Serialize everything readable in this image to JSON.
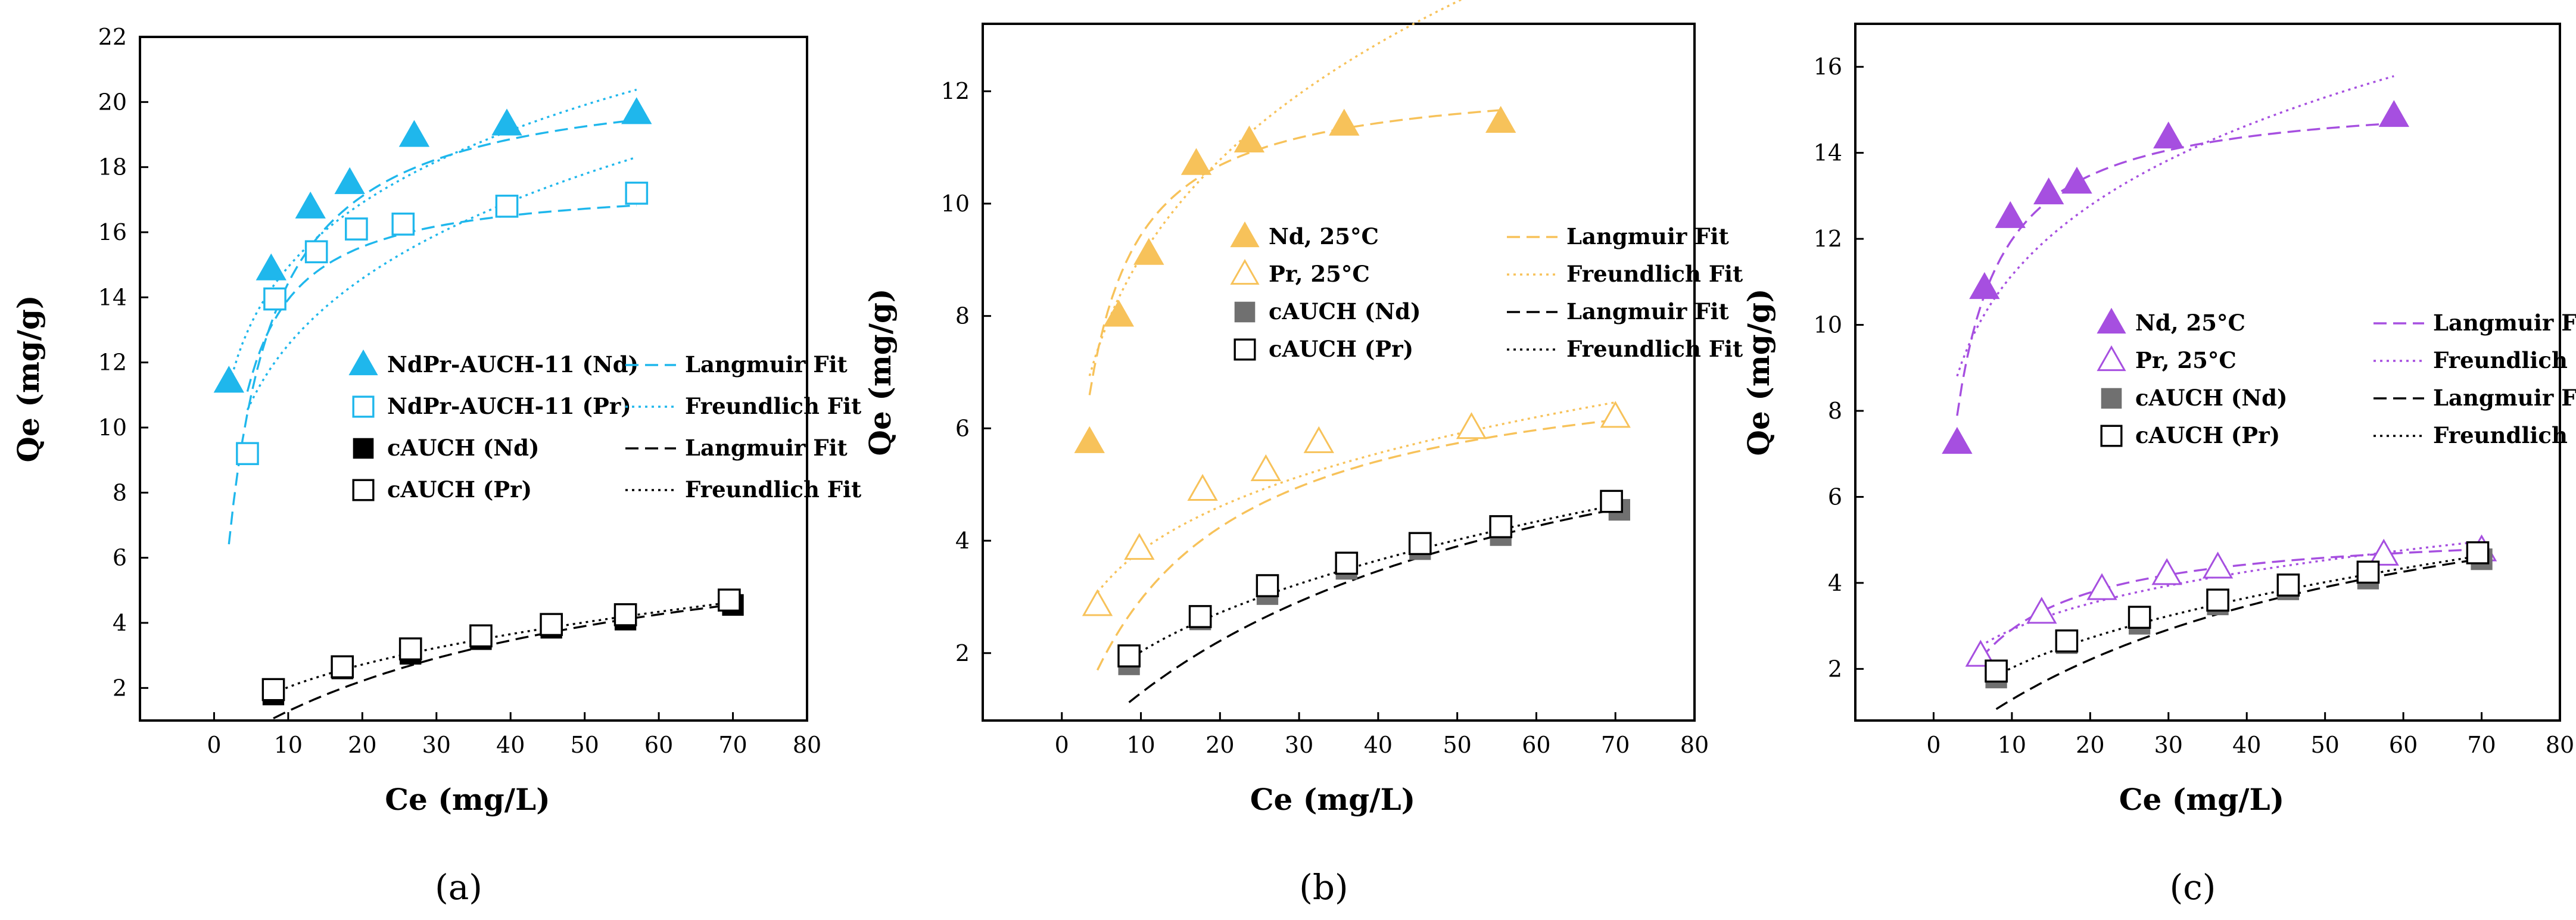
{
  "colors": {
    "a": "#1fb7ec",
    "b": "#f7c25a",
    "c": "#a64fe0",
    "black": "#000000",
    "grey": "#707070"
  },
  "chart_data": [
    {
      "type": "scatter",
      "panel": "a",
      "sublabel": "(a)",
      "xlabel": "Ce (mg/L)",
      "ylabel": "Qe (mg/g)",
      "xlim": [
        -10,
        80
      ],
      "ylim": [
        1,
        22
      ],
      "xticks": [
        0,
        10,
        20,
        30,
        40,
        50,
        60,
        70,
        80
      ],
      "yticks": [
        2,
        4,
        6,
        8,
        10,
        12,
        14,
        16,
        18,
        20,
        22
      ],
      "legend_position": "center-right",
      "points": [
        {
          "name": "NdPr-AUCH-11 (Nd)",
          "marker": "tri-filled",
          "color_key": "a",
          "x": [
            2,
            7.7,
            13,
            18.3,
            27,
            39.5,
            57
          ],
          "y": [
            11.4,
            14.85,
            16.75,
            17.5,
            18.95,
            19.3,
            19.65
          ]
        },
        {
          "name": "NdPr-AUCH-11 (Pr)",
          "marker": "sq-open",
          "color_key": "a",
          "x": [
            4.5,
            8.2,
            13.8,
            19.2,
            25.5,
            39.5,
            57
          ],
          "y": [
            9.2,
            13.95,
            15.4,
            16.1,
            16.25,
            16.8,
            17.2
          ]
        },
        {
          "name": "cAUCH (Nd)",
          "marker": "sq-filled",
          "color_key": "black",
          "x": [
            8,
            17.3,
            26.5,
            36,
            45.5,
            55.5,
            70
          ],
          "y": [
            1.8,
            2.6,
            3.05,
            3.5,
            3.85,
            4.1,
            4.55
          ]
        },
        {
          "name": "cAUCH (Pr)",
          "marker": "sq-open",
          "color_key": "black",
          "x": [
            8,
            17.3,
            26.5,
            36,
            45.5,
            55.5,
            69.5
          ],
          "y": [
            1.95,
            2.65,
            3.2,
            3.6,
            3.95,
            4.25,
            4.7
          ]
        }
      ],
      "fits": [
        {
          "model": "langmuir",
          "qmax": 21.0,
          "kl": 0.22,
          "x_range": [
            2,
            57
          ],
          "dash": "long",
          "color_key": "a"
        },
        {
          "model": "freundlich",
          "kf": 9.9,
          "n": 5.6,
          "x_range": [
            2,
            57
          ],
          "dash": "dot",
          "color_key": "a"
        },
        {
          "model": "langmuir",
          "qmax": 17.6,
          "kl": 0.38,
          "x_range": [
            4.5,
            57
          ],
          "dash": "long",
          "color_key": "a"
        },
        {
          "model": "freundlich",
          "kf": 7.6,
          "n": 4.6,
          "x_range": [
            4.5,
            57
          ],
          "dash": "dot",
          "color_key": "a"
        },
        {
          "model": "langmuir",
          "qmax": 7.9,
          "kl": 0.0195,
          "x_range": [
            8,
            70
          ],
          "dash": "long",
          "color_key": "black"
        },
        {
          "model": "freundlich",
          "kf": 0.76,
          "n": 2.35,
          "x_range": [
            8,
            70
          ],
          "dash": "dot",
          "color_key": "black"
        }
      ],
      "legend": [
        {
          "label": "NdPr-AUCH-11 (Nd)",
          "marker": "tri-filled",
          "color_key": "a",
          "fit_label": "Langmuir Fit",
          "dash": "long",
          "fit_color_key": "a"
        },
        {
          "label": "NdPr-AUCH-11 (Pr)",
          "marker": "sq-open",
          "color_key": "a",
          "fit_label": "Freundlich Fit",
          "dash": "dot",
          "fit_color_key": "a"
        },
        {
          "label": "cAUCH (Nd)",
          "marker": "sq-filled",
          "color_key": "black",
          "fit_label": "Langmuir Fit",
          "dash": "long",
          "fit_color_key": "black"
        },
        {
          "label": "cAUCH (Pr)",
          "marker": "sq-open",
          "color_key": "black",
          "fit_label": "Freundlich Fit",
          "dash": "dot",
          "fit_color_key": "black"
        }
      ]
    },
    {
      "type": "scatter",
      "panel": "b",
      "sublabel": "(b)",
      "xlabel": "Ce (mg/L)",
      "ylabel": "Qe (mg/g)",
      "xlim": [
        -10,
        80
      ],
      "ylim": [
        0.8,
        13.2
      ],
      "xticks": [
        0,
        10,
        20,
        30,
        40,
        50,
        60,
        70,
        80
      ],
      "yticks": [
        2,
        4,
        6,
        8,
        10,
        12
      ],
      "legend_position": "center-right",
      "points": [
        {
          "name": "Nd, 25°C",
          "marker": "tri-filled",
          "color_key": "b",
          "x": [
            3.5,
            7.2,
            11,
            17,
            23.7,
            35.7,
            55.5
          ],
          "y": [
            5.75,
            8.0,
            9.1,
            10.7,
            11.1,
            11.4,
            11.45
          ]
        },
        {
          "name": "Pr, 25°C",
          "marker": "tri-open",
          "color_key": "b",
          "x": [
            4.5,
            9.8,
            17.8,
            25.8,
            32.5,
            51.8,
            70
          ],
          "y": [
            2.85,
            3.85,
            4.9,
            5.25,
            5.75,
            6.0,
            6.2
          ]
        },
        {
          "name": "cAUCH (Nd)",
          "marker": "sq-filled",
          "color_key": "grey",
          "x": [
            8.5,
            17.5,
            26,
            36,
            45.3,
            55.5,
            70.5
          ],
          "y": [
            1.8,
            2.6,
            3.05,
            3.5,
            3.85,
            4.1,
            4.55
          ]
        },
        {
          "name": "cAUCH (Pr)",
          "marker": "sq-open",
          "color_key": "black",
          "x": [
            8.5,
            17.5,
            26,
            36,
            45.3,
            55.5,
            69.5
          ],
          "y": [
            1.95,
            2.65,
            3.2,
            3.6,
            3.95,
            4.25,
            4.7
          ]
        }
      ],
      "fits": [
        {
          "model": "langmuir",
          "qmax": 12.3,
          "kl": 0.33,
          "x_range": [
            3.5,
            55.5
          ],
          "dash": "long",
          "color_key": "b"
        },
        {
          "model": "freundlich",
          "kf": 5.05,
          "n": 3.95,
          "x_range": [
            3.5,
            70
          ],
          "dash": "dot",
          "color_key": "b"
        },
        {
          "model": "langmuir",
          "qmax": 7.5,
          "kl": 0.065,
          "x_range": [
            4.5,
            70
          ],
          "dash": "long",
          "color_key": "b"
        },
        {
          "model": "freundlich",
          "kf": 2.05,
          "n": 3.7,
          "x_range": [
            4.5,
            70
          ],
          "dash": "dot",
          "color_key": "b"
        },
        {
          "model": "langmuir",
          "qmax": 7.9,
          "kl": 0.0195,
          "x_range": [
            8.5,
            70
          ],
          "dash": "long",
          "color_key": "black"
        },
        {
          "model": "freundlich",
          "kf": 0.76,
          "n": 2.35,
          "x_range": [
            8.5,
            70
          ],
          "dash": "dot",
          "color_key": "black"
        }
      ],
      "legend": [
        {
          "label": "Nd, 25°C",
          "marker": "tri-filled",
          "color_key": "b",
          "fit_label": "Langmuir Fit",
          "dash": "long",
          "fit_color_key": "b"
        },
        {
          "label": "Pr, 25°C",
          "marker": "tri-open",
          "color_key": "b",
          "fit_label": "Freundlich Fit",
          "dash": "dot",
          "fit_color_key": "b"
        },
        {
          "label": "cAUCH (Nd)",
          "marker": "sq-filled",
          "color_key": "grey",
          "fit_label": "Langmuir Fit",
          "dash": "long",
          "fit_color_key": "black"
        },
        {
          "label": "cAUCH (Pr)",
          "marker": "sq-open",
          "color_key": "black",
          "fit_label": "Freundlich Fit",
          "dash": "dot",
          "fit_color_key": "black"
        }
      ]
    },
    {
      "type": "scatter",
      "panel": "c",
      "sublabel": "(c)",
      "xlabel": "Ce (mg/L)",
      "ylabel": "Qe (mg/g)",
      "xlim": [
        -10,
        80
      ],
      "ylim": [
        0.8,
        17.0
      ],
      "xticks": [
        0,
        10,
        20,
        30,
        40,
        50,
        60,
        70,
        80
      ],
      "yticks": [
        2,
        4,
        6,
        8,
        10,
        12,
        14,
        16
      ],
      "legend_position": "center-right",
      "points": [
        {
          "name": "Nd, 25°C",
          "marker": "tri-filled",
          "color_key": "c",
          "x": [
            3,
            6.5,
            9.8,
            14.7,
            18.3,
            30,
            58.8
          ],
          "y": [
            7.25,
            10.85,
            12.5,
            13.05,
            13.3,
            14.35,
            14.85
          ]
        },
        {
          "name": "Pr, 25°C",
          "marker": "tri-open",
          "color_key": "c",
          "x": [
            6,
            13.8,
            21.5,
            29.8,
            36.3,
            57.5,
            70
          ],
          "y": [
            2.3,
            3.3,
            3.85,
            4.2,
            4.35,
            4.65,
            4.75
          ]
        },
        {
          "name": "cAUCH (Nd)",
          "marker": "sq-filled",
          "color_key": "grey",
          "x": [
            8,
            17,
            26.3,
            36.3,
            45.3,
            55.5,
            70
          ],
          "y": [
            1.8,
            2.6,
            3.05,
            3.5,
            3.85,
            4.1,
            4.55
          ]
        },
        {
          "name": "cAUCH (Pr)",
          "marker": "sq-open",
          "color_key": "black",
          "x": [
            8,
            17,
            26.3,
            36.3,
            45.3,
            55.5,
            69.5
          ],
          "y": [
            1.95,
            2.65,
            3.2,
            3.6,
            3.95,
            4.25,
            4.7
          ]
        }
      ],
      "fits": [
        {
          "model": "langmuir",
          "qmax": 15.4,
          "kl": 0.35,
          "x_range": [
            3,
            58.8
          ],
          "dash": "long",
          "color_key": "c"
        },
        {
          "model": "freundlich",
          "kf": 7.1,
          "n": 5.1,
          "x_range": [
            3,
            58.8
          ],
          "dash": "dot",
          "color_key": "c"
        },
        {
          "model": "langmuir",
          "qmax": 5.35,
          "kl": 0.12,
          "x_range": [
            6,
            70
          ],
          "dash": "long",
          "color_key": "c"
        },
        {
          "model": "freundlich",
          "kf": 1.55,
          "n": 3.65,
          "x_range": [
            6,
            70
          ],
          "dash": "dot",
          "color_key": "c"
        },
        {
          "model": "langmuir",
          "qmax": 7.9,
          "kl": 0.0195,
          "x_range": [
            8,
            70
          ],
          "dash": "long",
          "color_key": "black"
        },
        {
          "model": "freundlich",
          "kf": 0.76,
          "n": 2.35,
          "x_range": [
            8,
            70
          ],
          "dash": "dot",
          "color_key": "black"
        }
      ],
      "legend": [
        {
          "label": "Nd, 25°C",
          "marker": "tri-filled",
          "color_key": "c",
          "fit_label": "Langmuir Fit",
          "dash": "long",
          "fit_color_key": "c"
        },
        {
          "label": "Pr, 25°C",
          "marker": "tri-open",
          "color_key": "c",
          "fit_label": "Freundlich Fit",
          "dash": "dot",
          "fit_color_key": "c"
        },
        {
          "label": "cAUCH (Nd)",
          "marker": "sq-filled",
          "color_key": "grey",
          "fit_label": "Langmuir Fit",
          "dash": "long",
          "fit_color_key": "black"
        },
        {
          "label": "cAUCH (Pr)",
          "marker": "sq-open",
          "color_key": "black",
          "fit_label": "Freundlich Fit",
          "dash": "dot",
          "fit_color_key": "black"
        }
      ]
    }
  ]
}
